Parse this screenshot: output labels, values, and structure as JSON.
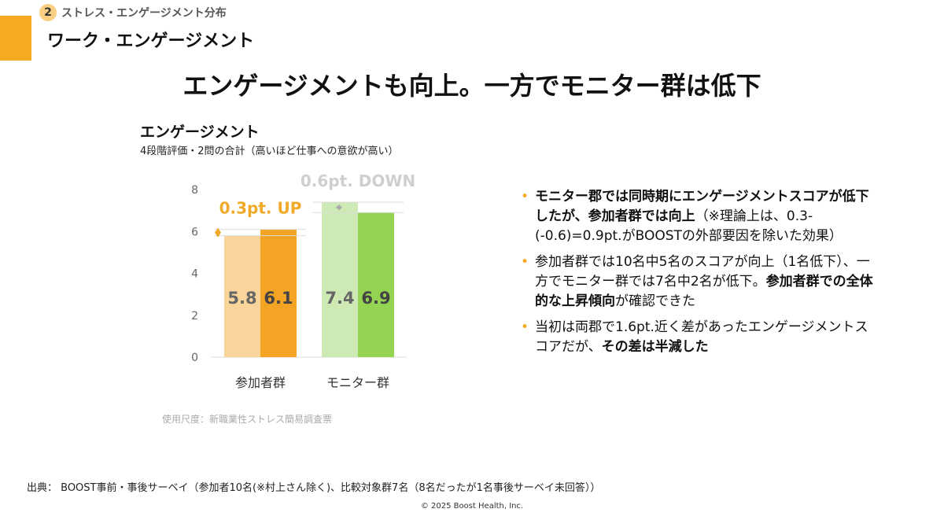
{
  "header": {
    "section_number": "2",
    "section_label": "ストレス・エンゲージメント分布",
    "page_subtitle": "ワーク・エンゲージメント",
    "headline": "エンゲージメントも向上。一方でモニター群は低下"
  },
  "colors": {
    "accent": "#f5aa22",
    "participant_before": "#f9d59c",
    "participant_after": "#f4a424",
    "monitor_before": "#cdeab4",
    "monitor_after": "#94d452",
    "up_label": "#f0a928",
    "down_label": "#cfcfcf"
  },
  "chart_data": {
    "type": "bar",
    "title": "エンゲージメント",
    "subtitle": "4段階評価・2問の合計（高いほど仕事への意欲が高い）",
    "categories": [
      "参加者群",
      "モニター群"
    ],
    "series": [
      {
        "values": [
          5.8,
          7.4
        ]
      },
      {
        "values": [
          6.1,
          6.9
        ]
      }
    ],
    "value_labels": [
      [
        "5.8",
        "6.1"
      ],
      [
        "7.4",
        "6.9"
      ]
    ],
    "yticks": [
      "0",
      "2",
      "4",
      "6",
      "8"
    ],
    "ylim": [
      0,
      8
    ],
    "annotations": [
      "0.3pt. UP",
      "0.6pt. DOWN"
    ],
    "grid": false,
    "note": "使用尺度：新職業性ストレス簡易調査票"
  },
  "bullets": [
    {
      "parts": [
        {
          "text": "モニター郡では同時期にエンゲージメントスコアが低下したが、参加者群では向上",
          "bold": true
        },
        {
          "text": "（※理論上は、0.3-(-0.6)=0.9pt.がBOOSTの外部要因を除いた効果）",
          "bold": false
        }
      ]
    },
    {
      "parts": [
        {
          "text": "参加者群では10名中5名のスコアが向上（1名低下）、一方でモニター群では7名中2名が低下。",
          "bold": false
        },
        {
          "text": "参加者群での全体的な上昇傾向",
          "bold": true
        },
        {
          "text": "が確認できた",
          "bold": false
        }
      ]
    },
    {
      "parts": [
        {
          "text": "当初は両郡で1.6pt.近く差があったエンゲージメントスコアだが、",
          "bold": false
        },
        {
          "text": "その差は半減した",
          "bold": true
        }
      ]
    }
  ],
  "footer": {
    "source": "出典： BOOST事前・事後サーベイ（参加者10名(※村上さん除く)、比較対象群7名（8名だったが1名事後サーベイ未回答））",
    "copyright": "© 2025 Boost Health, Inc."
  }
}
